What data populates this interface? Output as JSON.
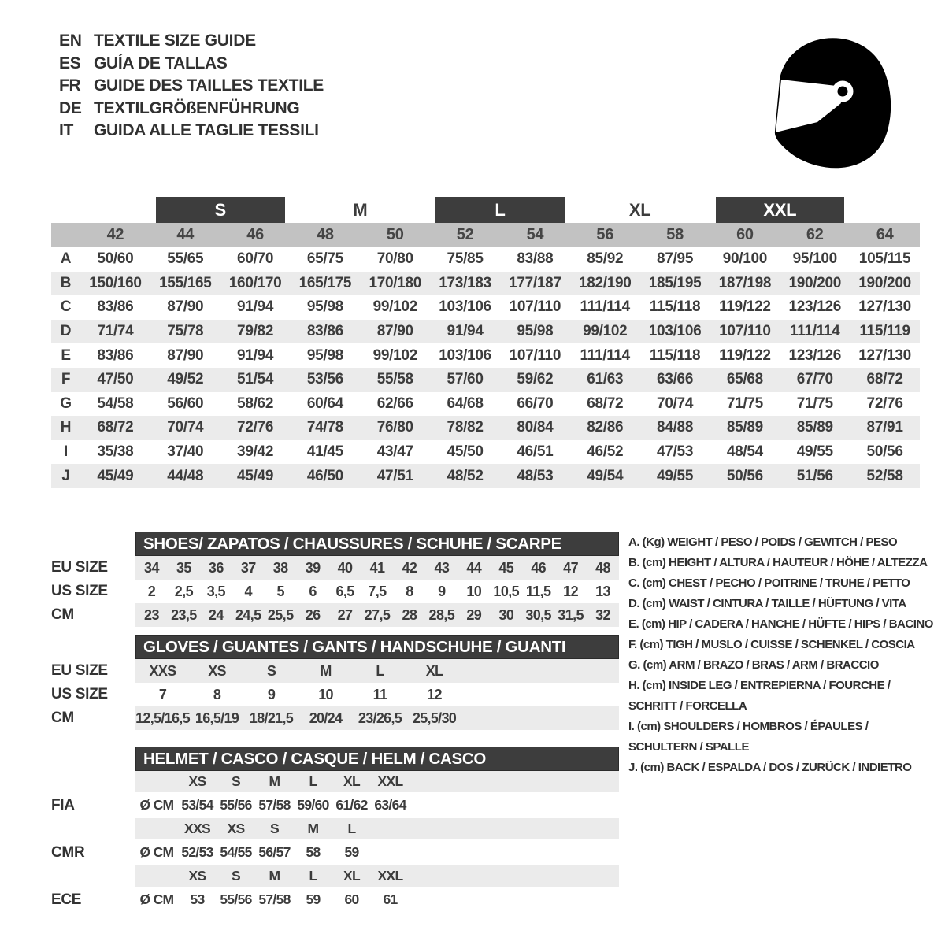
{
  "colors": {
    "dark_bar": "#3d3d3d",
    "header_band": "#c2c2c2",
    "row_stripe": "#ebebeb",
    "text": "#3c3c3c",
    "background": "#ffffff"
  },
  "header": {
    "languages": [
      {
        "code": "EN",
        "title": "TEXTILE SIZE GUIDE"
      },
      {
        "code": "ES",
        "title": "GUÍA DE TALLAS"
      },
      {
        "code": "FR",
        "title": "GUIDE DES TAILLES TEXTILE"
      },
      {
        "code": "DE",
        "title": "TEXTILGRÖßENFÜHRUNG"
      },
      {
        "code": "IT",
        "title": "GUIDA ALLE TAGLIE TESSILI"
      }
    ],
    "icon": "racing-helmet-icon"
  },
  "textile_table": {
    "size_groups": [
      {
        "label": "S",
        "boxed": true
      },
      {
        "label": "M",
        "boxed": false
      },
      {
        "label": "L",
        "boxed": true
      },
      {
        "label": "XL",
        "boxed": false
      },
      {
        "label": "XXL",
        "boxed": true
      }
    ],
    "columns": [
      "42",
      "44",
      "46",
      "48",
      "50",
      "52",
      "54",
      "56",
      "58",
      "60",
      "62",
      "64"
    ],
    "rows": [
      {
        "label": "A",
        "values": [
          "50/60",
          "55/65",
          "60/70",
          "65/75",
          "70/80",
          "75/85",
          "83/88",
          "85/92",
          "87/95",
          "90/100",
          "95/100",
          "105/115"
        ]
      },
      {
        "label": "B",
        "values": [
          "150/160",
          "155/165",
          "160/170",
          "165/175",
          "170/180",
          "173/183",
          "177/187",
          "182/190",
          "185/195",
          "187/198",
          "190/200",
          "190/200"
        ]
      },
      {
        "label": "C",
        "values": [
          "83/86",
          "87/90",
          "91/94",
          "95/98",
          "99/102",
          "103/106",
          "107/110",
          "111/114",
          "115/118",
          "119/122",
          "123/126",
          "127/130"
        ]
      },
      {
        "label": "D",
        "values": [
          "71/74",
          "75/78",
          "79/82",
          "83/86",
          "87/90",
          "91/94",
          "95/98",
          "99/102",
          "103/106",
          "107/110",
          "111/114",
          "115/119"
        ]
      },
      {
        "label": "E",
        "values": [
          "83/86",
          "87/90",
          "91/94",
          "95/98",
          "99/102",
          "103/106",
          "107/110",
          "111/114",
          "115/118",
          "119/122",
          "123/126",
          "127/130"
        ]
      },
      {
        "label": "F",
        "values": [
          "47/50",
          "49/52",
          "51/54",
          "53/56",
          "55/58",
          "57/60",
          "59/62",
          "61/63",
          "63/66",
          "65/68",
          "67/70",
          "68/72"
        ]
      },
      {
        "label": "G",
        "values": [
          "54/58",
          "56/60",
          "58/62",
          "60/64",
          "62/66",
          "64/68",
          "66/70",
          "68/72",
          "70/74",
          "71/75",
          "71/75",
          "72/76"
        ]
      },
      {
        "label": "H",
        "values": [
          "68/72",
          "70/74",
          "72/76",
          "74/78",
          "76/80",
          "78/82",
          "80/84",
          "82/86",
          "84/88",
          "85/89",
          "85/89",
          "87/91"
        ]
      },
      {
        "label": "I",
        "values": [
          "35/38",
          "37/40",
          "39/42",
          "41/45",
          "43/47",
          "45/50",
          "46/51",
          "46/52",
          "47/53",
          "48/54",
          "49/55",
          "50/56"
        ]
      },
      {
        "label": "J",
        "values": [
          "45/49",
          "44/48",
          "45/49",
          "46/50",
          "47/51",
          "48/52",
          "48/53",
          "49/54",
          "49/55",
          "50/56",
          "51/56",
          "52/58"
        ]
      }
    ]
  },
  "shoes_table": {
    "title": "SHOES/ ZAPATOS / CHAUSSURES / SCHUHE / SCARPE",
    "row_labels": [
      "EU SIZE",
      "US SIZE",
      "CM"
    ],
    "rows": {
      "eu": [
        "34",
        "35",
        "36",
        "37",
        "38",
        "39",
        "40",
        "41",
        "42",
        "43",
        "44",
        "45",
        "46",
        "47",
        "48"
      ],
      "us": [
        "2",
        "2,5",
        "3,5",
        "4",
        "5",
        "6",
        "6,5",
        "7,5",
        "8",
        "9",
        "10",
        "10,5",
        "11,5",
        "12",
        "13"
      ],
      "cm": [
        "23",
        "23,5",
        "24",
        "24,5",
        "25,5",
        "26",
        "27",
        "27,5",
        "28",
        "28,5",
        "29",
        "30",
        "30,5",
        "31,5",
        "32"
      ]
    }
  },
  "gloves_table": {
    "title": "GLOVES / GUANTES / GANTS / HANDSCHUHE / GUANTI",
    "row_labels": [
      "EU SIZE",
      "US SIZE",
      "CM"
    ],
    "rows": {
      "eu": [
        "XXS",
        "XS",
        "S",
        "M",
        "L",
        "XL"
      ],
      "us": [
        "7",
        "8",
        "9",
        "10",
        "11",
        "12"
      ],
      "cm": [
        "12,5/16,5",
        "16,5/19",
        "18/21,5",
        "20/24",
        "23/26,5",
        "25,5/30"
      ]
    }
  },
  "helmet_table": {
    "title": "HELMET / CASCO / CASQUE / HELM / CASCO",
    "unit_label": "Ø CM",
    "standards": [
      {
        "name": "FIA",
        "sizes": [
          "XS",
          "S",
          "M",
          "L",
          "XL",
          "XXL"
        ],
        "values": [
          "53/54",
          "55/56",
          "57/58",
          "59/60",
          "61/62",
          "63/64"
        ]
      },
      {
        "name": "CMR",
        "sizes": [
          "XXS",
          "XS",
          "S",
          "M",
          "L"
        ],
        "values": [
          "52/53",
          "54/55",
          "56/57",
          "58",
          "59"
        ]
      },
      {
        "name": "ECE",
        "sizes": [
          "XS",
          "S",
          "M",
          "L",
          "XL",
          "XXL"
        ],
        "values": [
          "53",
          "55/56",
          "57/58",
          "59",
          "60",
          "61"
        ]
      }
    ]
  },
  "legend": {
    "items": [
      "A. (Kg) WEIGHT / PESO / POIDS / GEWITCH / PESO",
      "B. (cm) HEIGHT / ALTURA / HAUTEUR / HÖHE / ALTEZZA",
      "C. (cm) CHEST / PECHO / POITRINE / TRUHE / PETTO",
      "D. (cm) WAIST / CINTURA / TAILLE / HÜFTUNG / VITA",
      "E. (cm) HIP / CADERA / HANCHE / HÜFTE / HIPS / BACINO",
      "F. (cm) TIGH / MUSLO / CUISSE / SCHENKEL / COSCIA",
      "G. (cm) ARM / BRAZO / BRAS / ARM / BRACCIO",
      "H. (cm) INSIDE LEG / ENTREPIERNA / FOURCHE /\nSCHRITT / FORCELLA",
      "I. (cm) SHOULDERS / HOMBROS / ÉPAULES /\nSCHULTERN / SPALLE",
      "J. (cm) BACK / ESPALDA / DOS / ZURÜCK / INDIETRO"
    ]
  }
}
